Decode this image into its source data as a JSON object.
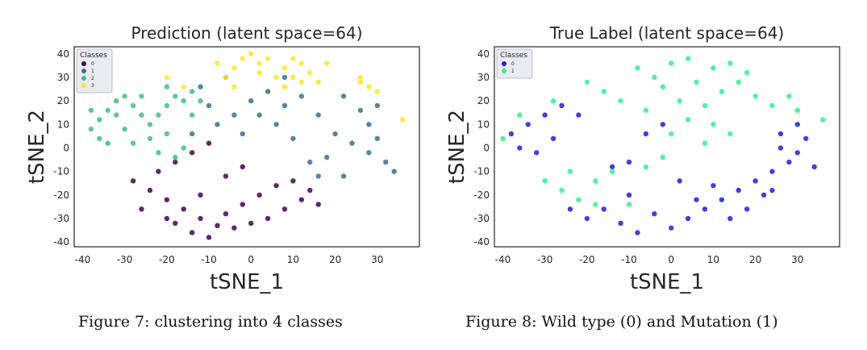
{
  "chart_data": [
    {
      "type": "scatter",
      "title": "Prediction (latent space=64)",
      "xlabel": "tSNE_1",
      "ylabel": "tSNE_2",
      "xlim": [
        -42,
        40
      ],
      "ylim": [
        -42,
        43
      ],
      "xticks": [
        -40,
        -30,
        -20,
        -10,
        0,
        10,
        20,
        30
      ],
      "yticks": [
        -40,
        -30,
        -20,
        -10,
        0,
        10,
        20,
        30,
        40
      ],
      "grid": false,
      "legend": {
        "title": "Classes",
        "placement": "top-left"
      },
      "series": [
        {
          "name": "0",
          "color": "#440154",
          "points": [
            [
              -28,
              -14
            ],
            [
              -24,
              -18
            ],
            [
              -20,
              -22
            ],
            [
              -16,
              -26
            ],
            [
              -12,
              -30
            ],
            [
              -8,
              -33
            ],
            [
              -4,
              -34
            ],
            [
              0,
              -32
            ],
            [
              4,
              -30
            ],
            [
              8,
              -26
            ],
            [
              12,
              -22
            ],
            [
              16,
              -24
            ],
            [
              -18,
              -32
            ],
            [
              -14,
              -36
            ],
            [
              -10,
              -38
            ],
            [
              -6,
              -28
            ],
            [
              -2,
              -24
            ],
            [
              2,
              -20
            ],
            [
              6,
              -16
            ],
            [
              -22,
              -10
            ],
            [
              -18,
              -6
            ],
            [
              -14,
              -2
            ],
            [
              -10,
              2
            ],
            [
              -6,
              -12
            ],
            [
              -2,
              -8
            ],
            [
              -26,
              -26
            ],
            [
              -20,
              -30
            ],
            [
              -12,
              -20
            ],
            [
              10,
              -14
            ],
            [
              14,
              -18
            ]
          ]
        },
        {
          "name": "1",
          "color": "#3b6e8f",
          "points": [
            [
              -8,
              10
            ],
            [
              -4,
              14
            ],
            [
              0,
              20
            ],
            [
              4,
              24
            ],
            [
              8,
              18
            ],
            [
              12,
              22
            ],
            [
              16,
              14
            ],
            [
              20,
              6
            ],
            [
              24,
              2
            ],
            [
              28,
              -2
            ],
            [
              30,
              4
            ],
            [
              32,
              -6
            ],
            [
              26,
              16
            ],
            [
              22,
              22
            ],
            [
              18,
              -4
            ],
            [
              14,
              -6
            ],
            [
              10,
              4
            ],
            [
              6,
              10
            ],
            [
              2,
              14
            ],
            [
              -2,
              6
            ],
            [
              -10,
              18
            ],
            [
              -12,
              26
            ],
            [
              -6,
              30
            ],
            [
              34,
              -10
            ],
            [
              28,
              10
            ],
            [
              22,
              -12
            ],
            [
              16,
              -12
            ],
            [
              30,
              18
            ],
            [
              -14,
              6
            ],
            [
              8,
              30
            ]
          ]
        },
        {
          "name": "2",
          "color": "#3dbf86",
          "points": [
            [
              -38,
              8
            ],
            [
              -36,
              12
            ],
            [
              -34,
              16
            ],
            [
              -32,
              20
            ],
            [
              -30,
              22
            ],
            [
              -28,
              18
            ],
            [
              -26,
              14
            ],
            [
              -24,
              10
            ],
            [
              -22,
              14
            ],
            [
              -20,
              18
            ],
            [
              -18,
              22
            ],
            [
              -16,
              20
            ],
            [
              -14,
              24
            ],
            [
              -12,
              20
            ],
            [
              -36,
              4
            ],
            [
              -34,
              2
            ],
            [
              -30,
              8
            ],
            [
              -28,
              2
            ],
            [
              -24,
              4
            ],
            [
              -20,
              6
            ],
            [
              -22,
              -2
            ],
            [
              -18,
              -4
            ],
            [
              -16,
              0
            ],
            [
              -32,
              14
            ],
            [
              -26,
              22
            ],
            [
              -38,
              16
            ],
            [
              -14,
              14
            ],
            [
              -20,
              26
            ]
          ]
        },
        {
          "name": "3",
          "color": "#fde725",
          "points": [
            [
              -6,
              30
            ],
            [
              -4,
              34
            ],
            [
              -2,
              38
            ],
            [
              0,
              40
            ],
            [
              2,
              36
            ],
            [
              -4,
              26
            ],
            [
              6,
              30
            ],
            [
              8,
              34
            ],
            [
              10,
              38
            ],
            [
              12,
              36
            ],
            [
              14,
              32
            ],
            [
              16,
              28
            ],
            [
              12,
              28
            ],
            [
              18,
              36
            ],
            [
              8,
              26
            ],
            [
              -8,
              36
            ],
            [
              4,
              38
            ],
            [
              10,
              30
            ],
            [
              -16,
              26
            ],
            [
              -20,
              30
            ],
            [
              26,
              28
            ],
            [
              28,
              26
            ],
            [
              30,
              24
            ],
            [
              36,
              12
            ],
            [
              26,
              30
            ],
            [
              2,
              32
            ]
          ]
        }
      ]
    },
    {
      "type": "scatter",
      "title": "True Label (latent space=64)",
      "xlabel": "tSNE_1",
      "ylabel": "tSNE_2",
      "xlim": [
        -42,
        40
      ],
      "ylim": [
        -42,
        43
      ],
      "xticks": [
        -40,
        -30,
        -20,
        -10,
        0,
        10,
        20,
        30
      ],
      "yticks": [
        -40,
        -30,
        -20,
        -10,
        0,
        10,
        20,
        30,
        40
      ],
      "grid": false,
      "legend": {
        "title": "Classes",
        "placement": "top-left"
      },
      "series": [
        {
          "name": "0",
          "color": "#1f1fd6",
          "points": [
            [
              -38,
              6
            ],
            [
              -34,
              10
            ],
            [
              -30,
              14
            ],
            [
              -26,
              18
            ],
            [
              -22,
              14
            ],
            [
              -36,
              0
            ],
            [
              -32,
              -2
            ],
            [
              -28,
              4
            ],
            [
              -20,
              -30
            ],
            [
              -16,
              -26
            ],
            [
              -12,
              -32
            ],
            [
              -8,
              -36
            ],
            [
              -4,
              -28
            ],
            [
              0,
              -34
            ],
            [
              4,
              -30
            ],
            [
              8,
              -26
            ],
            [
              12,
              -22
            ],
            [
              16,
              -18
            ],
            [
              20,
              -14
            ],
            [
              24,
              -10
            ],
            [
              28,
              -6
            ],
            [
              30,
              -2
            ],
            [
              32,
              4
            ],
            [
              26,
              0
            ],
            [
              22,
              -20
            ],
            [
              18,
              -26
            ],
            [
              14,
              -30
            ],
            [
              10,
              -16
            ],
            [
              -10,
              -20
            ],
            [
              -6,
              6
            ],
            [
              -2,
              10
            ],
            [
              -14,
              -8
            ],
            [
              -24,
              -26
            ],
            [
              2,
              -14
            ],
            [
              6,
              -22
            ],
            [
              34,
              -8
            ],
            [
              26,
              6
            ],
            [
              -10,
              -6
            ],
            [
              30,
              10
            ],
            [
              24,
              -18
            ]
          ]
        },
        {
          "name": "1",
          "color": "#2ef28a",
          "points": [
            [
              -40,
              4
            ],
            [
              -36,
              14
            ],
            [
              -30,
              -14
            ],
            [
              -26,
              -18
            ],
            [
              -22,
              -22
            ],
            [
              -18,
              -14
            ],
            [
              -14,
              -10
            ],
            [
              -10,
              -24
            ],
            [
              -6,
              -8
            ],
            [
              -2,
              -4
            ],
            [
              0,
              6
            ],
            [
              4,
              12
            ],
            [
              8,
              18
            ],
            [
              12,
              24
            ],
            [
              16,
              28
            ],
            [
              20,
              22
            ],
            [
              24,
              18
            ],
            [
              28,
              22
            ],
            [
              30,
              16
            ],
            [
              -4,
              30
            ],
            [
              0,
              36
            ],
            [
              4,
              38
            ],
            [
              -8,
              34
            ],
            [
              10,
              34
            ],
            [
              14,
              36
            ],
            [
              18,
              32
            ],
            [
              -16,
              24
            ],
            [
              -20,
              28
            ],
            [
              -12,
              20
            ],
            [
              2,
              20
            ],
            [
              6,
              28
            ],
            [
              -6,
              16
            ],
            [
              10,
              10
            ],
            [
              14,
              6
            ],
            [
              -18,
              -24
            ],
            [
              -24,
              -10
            ],
            [
              36,
              12
            ],
            [
              -28,
              20
            ],
            [
              8,
              2
            ],
            [
              -2,
              26
            ]
          ]
        }
      ]
    }
  ],
  "captions": {
    "fig7": "Figure 7: clustering into 4 classes",
    "fig8": "Figure 8: Wild type (0) and Mutation (1)"
  }
}
